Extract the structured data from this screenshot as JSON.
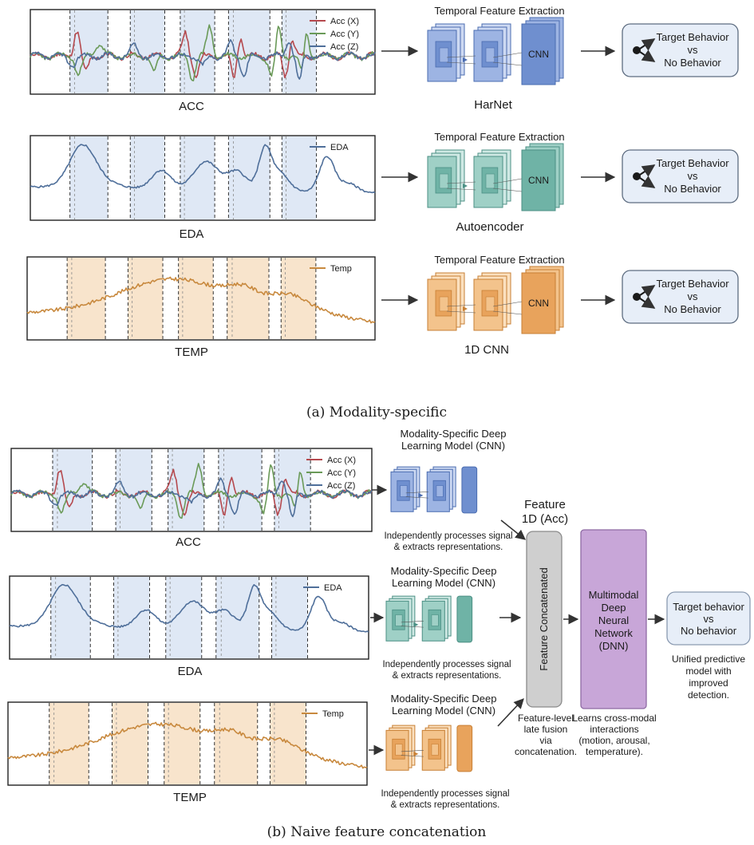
{
  "panel_a": {
    "caption": "(a) Modality-specific",
    "rows": [
      {
        "signal_label": "ACC",
        "legend": [
          "Acc (X)",
          "Acc (Y)",
          "Acc (Z)"
        ],
        "legend_colors": [
          "#b5494e",
          "#6a9a58",
          "#4f6f9a"
        ],
        "band_color": "#dfe8f5",
        "block_header": "Temporal Feature Extraction",
        "block_label": "CNN",
        "model_name": "HarNet",
        "output_line1": "Target Behavior",
        "output_line2": "vs",
        "output_line3": "No Behavior",
        "palette": [
          "#cdd9f2",
          "#9db4e3",
          "#6f8fcf",
          "#4a6cb0"
        ]
      },
      {
        "signal_label": "EDA",
        "legend": [
          "EDA"
        ],
        "legend_colors": [
          "#4f6f9a"
        ],
        "band_color": "#dfe8f5",
        "block_header": "Temporal Feature Extraction",
        "block_label": "CNN",
        "model_name": "Autoencoder",
        "output_line1": "Target Behavior",
        "output_line2": "vs",
        "output_line3": "No Behavior",
        "palette": [
          "#cfe9e4",
          "#9fd0c6",
          "#6fb3a6",
          "#4b8f84"
        ]
      },
      {
        "signal_label": "TEMP",
        "legend": [
          "Temp"
        ],
        "legend_colors": [
          "#c8893e"
        ],
        "band_color": "#f8e4cc",
        "block_header": "Temporal Feature Extraction",
        "block_label": "CNN",
        "model_name": "1D CNN",
        "output_line1": "Target Behavior",
        "output_line2": "vs",
        "output_line3": "No Behavior",
        "palette": [
          "#fbe0bf",
          "#f3c38c",
          "#e8a35c",
          "#c77f34"
        ]
      }
    ]
  },
  "panel_b": {
    "caption": "(b) Naive feature concatenation",
    "rows": [
      {
        "signal_label": "ACC",
        "legend": [
          "Acc (X)",
          "Acc (Y)",
          "Acc (Z)"
        ],
        "legend_colors": [
          "#b5494e",
          "#6a9a58",
          "#4f6f9a"
        ],
        "band_color": "#dfe8f5",
        "model_title1": "Modality-Specific Deep",
        "model_title2": "Learning Model (CNN)",
        "note1": "Independently processes signal",
        "note2": "& extracts representations.",
        "palette": [
          "#cdd9f2",
          "#9db4e3",
          "#6f8fcf",
          "#4a6cb0"
        ]
      },
      {
        "signal_label": "EDA",
        "legend": [
          "EDA"
        ],
        "legend_colors": [
          "#4f6f9a"
        ],
        "band_color": "#dfe8f5",
        "model_title1": "Modality-Specific Deep",
        "model_title2": "Learning Model (CNN)",
        "note1": "Independently processes signal",
        "note2": "& extracts representations.",
        "palette": [
          "#cfe9e4",
          "#9fd0c6",
          "#6fb3a6",
          "#4b8f84"
        ]
      },
      {
        "signal_label": "TEMP",
        "legend": [
          "Temp"
        ],
        "legend_colors": [
          "#c8893e"
        ],
        "band_color": "#f8e4cc",
        "model_title1": "Modality-Specific Deep",
        "model_title2": "Learning Model (CNN)",
        "note1": "Independently processes signal",
        "note2": "& extracts representations.",
        "palette": [
          "#fbe0bf",
          "#f3c38c",
          "#e8a35c",
          "#c77f34"
        ]
      }
    ],
    "feature_label1": "Feature",
    "feature_label2": "1D (Acc)",
    "concat_label": "Feature Concatenated",
    "concat_note": [
      "Feature-level",
      "late fusion",
      "via",
      "concatenation."
    ],
    "dnn_label": [
      "Multimodal",
      "Deep",
      "Neural",
      "Network",
      "(DNN)"
    ],
    "dnn_note": [
      "Learns cross-modal",
      "interactions",
      "(motion, arousal,",
      "temperature)."
    ],
    "output_label": [
      "Target behavior",
      "vs",
      "No behavior"
    ],
    "output_note": [
      "Unified predictive",
      "model with",
      "improved",
      "detection."
    ]
  }
}
